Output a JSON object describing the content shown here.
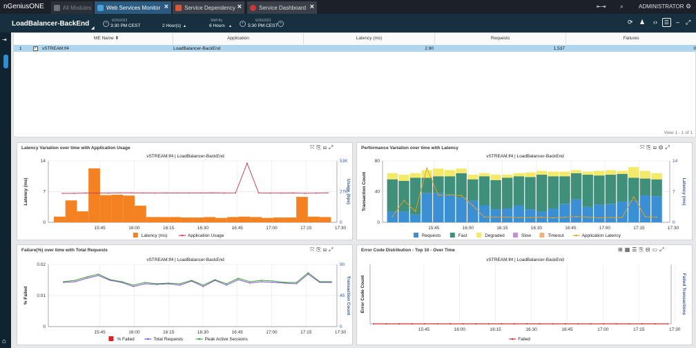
{
  "app": {
    "logo": "nGeniusONE",
    "tabs": [
      {
        "label": "All Modules"
      },
      {
        "label": "Web Services Monitor"
      },
      {
        "label": "Service Dependency"
      },
      {
        "label": "Service Dashboard"
      }
    ],
    "user": "ADMINISTRATOR"
  },
  "header": {
    "title": "LoadBalancer-BackEnd",
    "start_date": "6/26/2023",
    "start_time": "3:30 PM CEST",
    "duration": "2 Hour(s)",
    "shift_label": "Shift By",
    "shift_value": "6 Hours",
    "end_date": "6/26/2023",
    "end_time": "5:30 PM CEST"
  },
  "table": {
    "columns": [
      "ME Name",
      "Application",
      "Latency (ms)",
      "Requests",
      "Failures"
    ],
    "rows": [
      {
        "index": "1",
        "me_name": "vSTREAM:lf4",
        "application": "LoadBalancer-BackEnd",
        "latency": "2.90",
        "requests": "1,537",
        "failures": "0"
      }
    ],
    "view_info": "View 1 - 1 of 1"
  },
  "panels": {
    "latency": {
      "title": "Latency Variation over time with Application Usage",
      "subtitle": "vSTREAM:lf4 | LoadBalancer-BackEnd"
    },
    "performance": {
      "title": "Performance Variation over time with Latency",
      "subtitle": "vSTREAM:lf4 | LoadBalancer-BackEnd"
    },
    "failure": {
      "title": "Failure(%) over time with Total Requests",
      "subtitle": "vSTREAM:lf4 | LoadBalancer-BackEnd"
    },
    "errors": {
      "title": "Error Code Distribution - Top 10 - Over Time",
      "subtitle": "vSTREAM:lf4 | LoadBalancer-BackEnd"
    }
  },
  "chart_data": [
    {
      "type": "bar",
      "title": "Latency Variation over time with Application Usage",
      "ylabel": "Latency (ms)",
      "y2label": "Usage (bps)",
      "ylim": [
        0,
        14
      ],
      "y2lim": [
        0,
        53000
      ],
      "yticks": [
        "0",
        "7",
        "14"
      ],
      "y2ticks": [
        "0",
        "27K",
        "53K"
      ],
      "xticks": [
        "15:45",
        "16:00",
        "16:15",
        "16:30",
        "16:45",
        "17:00",
        "17:15",
        "17:30"
      ],
      "categories": [
        "15:30",
        "15:35",
        "15:40",
        "15:45",
        "15:50",
        "15:55",
        "16:00",
        "16:05",
        "16:10",
        "16:15",
        "16:20",
        "16:25",
        "16:30",
        "16:35",
        "16:40",
        "16:45",
        "16:50",
        "16:55",
        "17:00",
        "17:05",
        "17:10",
        "17:15",
        "17:20",
        "17:25"
      ],
      "series": [
        {
          "name": "Latency (ms)",
          "kind": "bar",
          "color": "#f58220",
          "values": [
            1.3,
            5,
            2.5,
            12.3,
            6.2,
            6.3,
            6.1,
            3.8,
            1.2,
            1.2,
            1.2,
            1.1,
            1.1,
            1.2,
            1,
            1.2,
            1.3,
            1.2,
            1,
            1.1,
            1.1,
            5.8,
            1.3,
            1.2
          ]
        },
        {
          "name": "Application Usage",
          "kind": "line",
          "axis": "right",
          "color": "#c8415a",
          "values": [
            25000,
            25000,
            25200,
            25200,
            25200,
            25400,
            25400,
            25300,
            25200,
            25300,
            25300,
            25300,
            25300,
            25400,
            25200,
            25300,
            51000,
            25300,
            25200,
            25200,
            25300,
            25100,
            25200,
            25400
          ]
        }
      ],
      "legend": "bottom"
    },
    {
      "type": "bar",
      "title": "Performance Variation over time with Latency",
      "ylabel": "Transaction Count",
      "y2label": "Latency (ms)",
      "ylim": [
        0,
        80
      ],
      "y2lim": [
        0,
        14
      ],
      "yticks": [
        "0",
        "40",
        "80"
      ],
      "y2ticks": [
        "0",
        "7",
        "14"
      ],
      "xticks": [
        "15:45",
        "16:00",
        "16:15",
        "16:30",
        "16:45",
        "17:00",
        "17:15",
        "17:30"
      ],
      "categories": [
        "15:30",
        "15:35",
        "15:40",
        "15:45",
        "15:50",
        "15:55",
        "16:00",
        "16:05",
        "16:10",
        "16:15",
        "16:20",
        "16:25",
        "16:30",
        "16:35",
        "16:40",
        "16:45",
        "16:50",
        "16:55",
        "17:00",
        "17:05",
        "17:10",
        "17:15",
        "17:20",
        "17:25"
      ],
      "series": [
        {
          "name": "Requests",
          "kind": "stack",
          "color": "#3b8fd4",
          "values": [
            14,
            14,
            10,
            38,
            38,
            36,
            32,
            28,
            22,
            17,
            18,
            22,
            17,
            14,
            18,
            24,
            30,
            20,
            23,
            24,
            27,
            28,
            35,
            34
          ]
        },
        {
          "name": "Fast",
          "kind": "stack",
          "color": "#3f8f7a",
          "values": [
            42,
            40,
            48,
            20,
            22,
            24,
            32,
            28,
            38,
            38,
            40,
            38,
            42,
            48,
            42,
            36,
            34,
            42,
            38,
            38,
            36,
            30,
            22,
            22
          ]
        },
        {
          "name": "Degraded",
          "kind": "stack",
          "color": "#f4ea6a",
          "values": [
            8,
            8,
            6,
            10,
            10,
            8,
            6,
            6,
            4,
            7,
            4,
            4,
            6,
            5,
            6,
            6,
            4,
            4,
            6,
            6,
            4,
            14,
            10,
            8
          ]
        },
        {
          "name": "Slow",
          "kind": "stack",
          "color": "#c58fd8",
          "values": [
            0,
            0,
            0,
            0,
            0,
            0,
            0,
            0,
            0,
            0,
            0,
            0,
            0,
            0,
            0,
            0,
            0,
            0,
            0,
            0,
            0,
            0,
            0,
            0
          ]
        },
        {
          "name": "Timeout",
          "kind": "stack",
          "color": "#f2b27a",
          "values": [
            0,
            0,
            0,
            0,
            0,
            0,
            0,
            0,
            0,
            0,
            0,
            0,
            0,
            0,
            0,
            0,
            0,
            0,
            0,
            0,
            0,
            0,
            0,
            0
          ]
        },
        {
          "name": "Application Latency",
          "kind": "line",
          "axis": "right",
          "color": "#e0a020",
          "values": [
            1.3,
            5,
            2.5,
            12.3,
            6.2,
            6.3,
            6.1,
            3.8,
            1.2,
            1.2,
            1.2,
            1.1,
            1.1,
            1.2,
            1,
            1.2,
            1.3,
            1.2,
            1,
            1.1,
            1.1,
            5.8,
            1.3,
            1.2
          ]
        }
      ],
      "legend": "bottom"
    },
    {
      "type": "line",
      "title": "Failure(%) over time with Total Requests",
      "ylabel": "% Failed",
      "y2label": "Transaction Count",
      "ylim": [
        0,
        0.02
      ],
      "y2lim": [
        0,
        90
      ],
      "yticks": [
        "0",
        "0.01",
        "0.02"
      ],
      "y2ticks": [
        "0",
        "45",
        "90"
      ],
      "xticks": [
        "15:45",
        "16:00",
        "16:15",
        "16:30",
        "16:45",
        "17:00",
        "17:15",
        "17:30"
      ],
      "series": [
        {
          "name": "% Failed",
          "color": "#e02020",
          "values": [
            0,
            0,
            0,
            0,
            0,
            0,
            0,
            0,
            0,
            0,
            0,
            0,
            0,
            0,
            0,
            0,
            0,
            0,
            0,
            0,
            0,
            0,
            0,
            0
          ]
        },
        {
          "name": "Total Requests",
          "axis": "right",
          "color": "#7b52c7",
          "values": [
            64,
            65,
            70,
            74,
            67,
            64,
            58,
            62,
            61,
            62,
            60,
            66,
            58,
            67,
            60,
            68,
            63,
            65,
            64,
            63,
            62,
            76,
            64,
            64
          ]
        },
        {
          "name": "Peak Active Sessions",
          "axis": "right",
          "color": "#3a9a3a",
          "values": [
            65,
            67,
            72,
            76,
            68,
            65,
            60,
            64,
            62,
            63,
            62,
            67,
            60,
            68,
            62,
            70,
            65,
            67,
            66,
            64,
            64,
            78,
            65,
            65
          ]
        }
      ],
      "legend": "bottom"
    },
    {
      "type": "line",
      "title": "Error Code Distribution - Top 10 - Over Time",
      "ylabel": "Error Code Count",
      "y2label": "Failed Transactions",
      "xticks": [
        "15:45",
        "16:00",
        "16:15",
        "16:30",
        "16:45",
        "17:00",
        "17:15",
        "17:30"
      ],
      "series": [
        {
          "name": "Failed",
          "color": "#d03030",
          "values": [
            0,
            0,
            0,
            0,
            0,
            0,
            0,
            0,
            0,
            0,
            0,
            0,
            0,
            0,
            0,
            0,
            0,
            0,
            0,
            0,
            0,
            0,
            0,
            0
          ]
        }
      ],
      "legend": "bottom"
    }
  ]
}
